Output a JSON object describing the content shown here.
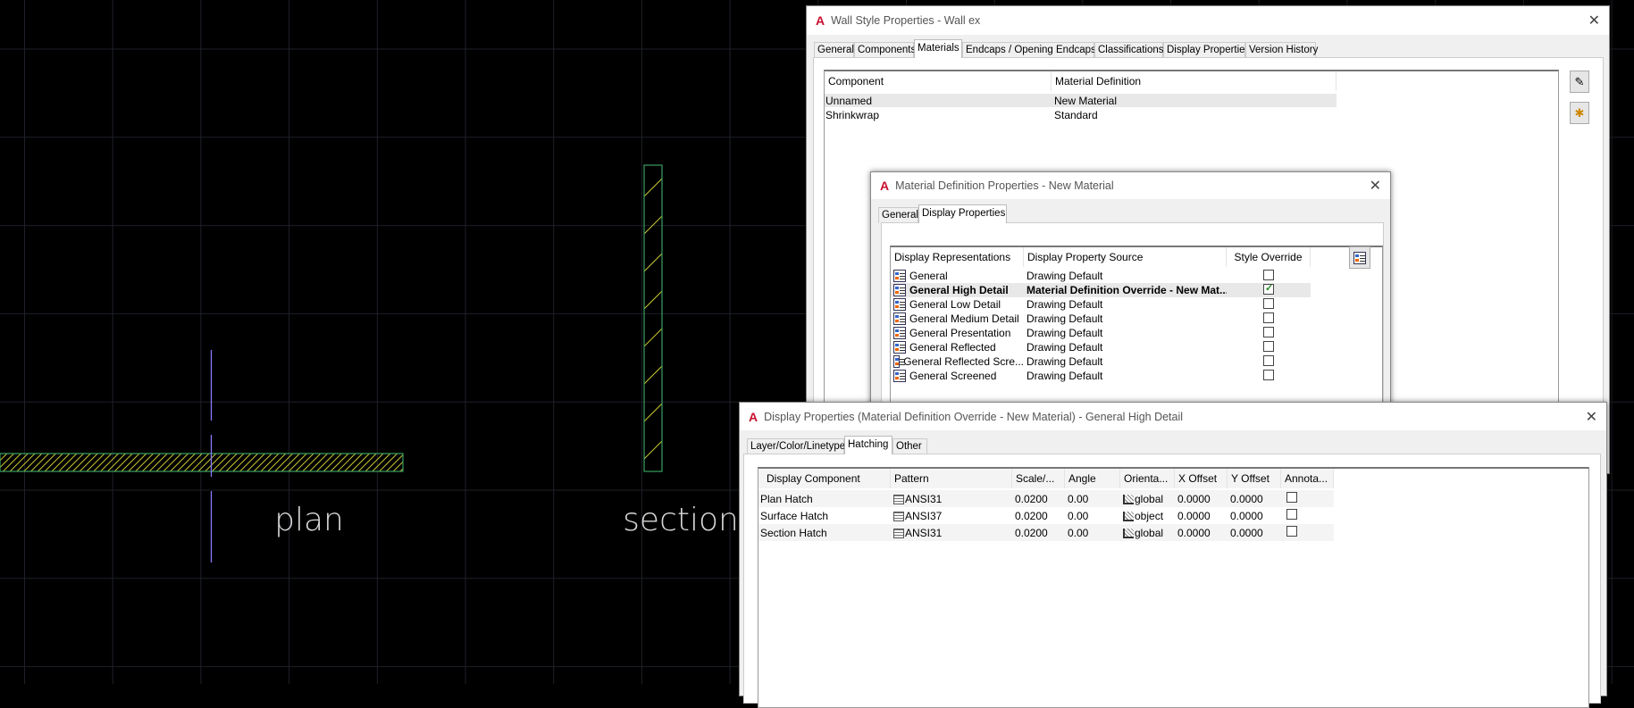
{
  "canvas": {
    "labels": {
      "plan": "plan",
      "section": "section"
    },
    "colors": {
      "background": "#000000",
      "grid": "#1e2128",
      "wall_outline": "#3aa060",
      "hatch": "#c8c832",
      "centerline": "#8a7cff",
      "label": "#d8d8d8"
    }
  },
  "wall_style": {
    "title": "Wall Style Properties - Wall ex",
    "icon": "autocad-logo-icon",
    "logo_letter": "A",
    "tabs": [
      "General",
      "Components",
      "Materials",
      "Endcaps / Opening Endcaps",
      "Classifications",
      "Display Properties",
      "Version History"
    ],
    "active_tab": "Materials",
    "columns": [
      "Component",
      "Material Definition"
    ],
    "rows": [
      {
        "component": "Unnamed",
        "material": "New Material",
        "selected": true
      },
      {
        "component": "Shrinkwrap",
        "material": "Standard",
        "selected": false
      }
    ],
    "side_buttons": [
      "edit-material-icon",
      "new-material-icon"
    ]
  },
  "material_def": {
    "title": "Material Definition Properties - New Material",
    "logo_letter": "A",
    "tabs": [
      "General",
      "Display Properties"
    ],
    "active_tab": "Display Properties",
    "columns": [
      "Display Representations",
      "Display Property Source",
      "Style Override"
    ],
    "rows": [
      {
        "rep": "General",
        "source": "Drawing Default",
        "override": false,
        "bold": false
      },
      {
        "rep": "General High Detail",
        "source": "Material Definition Override - New Mat...",
        "override": true,
        "bold": true
      },
      {
        "rep": "General Low Detail",
        "source": "Drawing Default",
        "override": false,
        "bold": false
      },
      {
        "rep": "General Medium Detail",
        "source": "Drawing Default",
        "override": false,
        "bold": false
      },
      {
        "rep": "General Presentation",
        "source": "Drawing Default",
        "override": false,
        "bold": false
      },
      {
        "rep": "General Reflected",
        "source": "Drawing Default",
        "override": false,
        "bold": false
      },
      {
        "rep": "General Reflected Scre...",
        "source": "Drawing Default",
        "override": false,
        "bold": false
      },
      {
        "rep": "General Screened",
        "source": "Drawing Default",
        "override": false,
        "bold": false
      }
    ]
  },
  "display_props": {
    "title": "Display Properties (Material Definition Override - New Material) - General High Detail",
    "logo_letter": "A",
    "tabs": [
      "Layer/Color/Linetype",
      "Hatching",
      "Other"
    ],
    "active_tab": "Hatching",
    "columns": [
      "Display Component",
      "Pattern",
      "Scale/...",
      "Angle",
      "Orienta...",
      "X Offset",
      "Y Offset",
      "Annota..."
    ],
    "rows": [
      {
        "component": "Plan Hatch",
        "pattern": "ANSI31",
        "scale": "0.0200",
        "angle": "0.00",
        "orientation": "global",
        "x_offset": "0.0000",
        "y_offset": "0.0000",
        "annotative": false
      },
      {
        "component": "Surface Hatch",
        "pattern": "ANSI37",
        "scale": "0.0200",
        "angle": "0.00",
        "orientation": "object",
        "x_offset": "0.0000",
        "y_offset": "0.0000",
        "annotative": false
      },
      {
        "component": "Section Hatch",
        "pattern": "ANSI31",
        "scale": "0.0200",
        "angle": "0.00",
        "orientation": "global",
        "x_offset": "0.0000",
        "y_offset": "0.0000",
        "annotative": false
      }
    ]
  }
}
